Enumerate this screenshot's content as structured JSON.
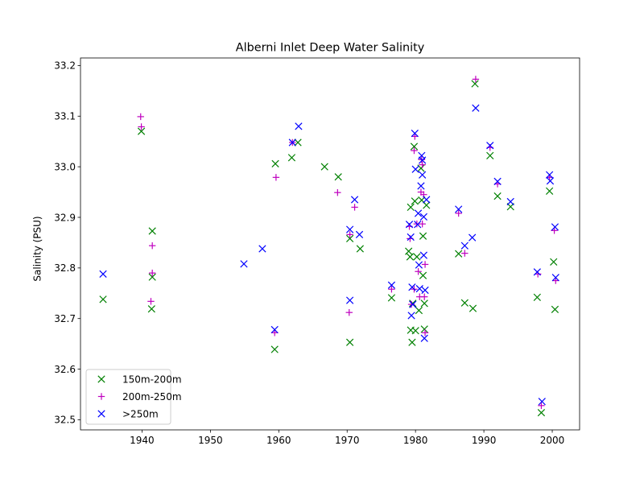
{
  "chart_data": {
    "type": "scatter",
    "title": "Alberni Inlet Deep Water Salinity",
    "xlabel": "",
    "ylabel": "Salinity (PSU)",
    "xlim": [
      1931,
      2004
    ],
    "ylim": [
      32.48,
      33.215
    ],
    "xticks": [
      1940,
      1950,
      1960,
      1970,
      1980,
      1990,
      2000
    ],
    "yticks": [
      32.5,
      32.6,
      32.7,
      32.8,
      32.9,
      33.0,
      33.1,
      33.2
    ],
    "ytick_labels": [
      "32.5",
      "32.6",
      "32.7",
      "32.8",
      "32.9",
      "33.0",
      "33.1",
      "33.2"
    ],
    "grid": false,
    "legend_position": "lower-left",
    "series": [
      {
        "name": "150m-200m",
        "marker": "x",
        "color": "#008000",
        "points": [
          [
            1934.3,
            32.738
          ],
          [
            1939.9,
            33.07
          ],
          [
            1941.5,
            32.873
          ],
          [
            1941.5,
            32.782
          ],
          [
            1941.4,
            32.719
          ],
          [
            1959.5,
            33.006
          ],
          [
            1959.4,
            32.639
          ],
          [
            1961.9,
            33.018
          ],
          [
            1962.8,
            33.048
          ],
          [
            1966.7,
            33.0
          ],
          [
            1968.7,
            32.98
          ],
          [
            1970.4,
            32.858
          ],
          [
            1970.4,
            32.653
          ],
          [
            1971.9,
            32.838
          ],
          [
            1976.5,
            32.741
          ],
          [
            1979.0,
            32.833
          ],
          [
            1979.2,
            32.822
          ],
          [
            1979.3,
            32.92
          ],
          [
            1979.3,
            32.677
          ],
          [
            1979.5,
            32.653
          ],
          [
            1979.6,
            32.73
          ],
          [
            1979.8,
            33.04
          ],
          [
            1979.9,
            32.932
          ],
          [
            1980.0,
            32.676
          ],
          [
            1980.2,
            32.822
          ],
          [
            1980.5,
            32.716
          ],
          [
            1980.8,
            32.997
          ],
          [
            1980.9,
            32.934
          ],
          [
            1981.1,
            32.785
          ],
          [
            1981.1,
            32.863
          ],
          [
            1981.3,
            32.73
          ],
          [
            1981.3,
            32.679
          ],
          [
            1981.6,
            32.924
          ],
          [
            1986.3,
            32.828
          ],
          [
            1987.2,
            32.731
          ],
          [
            1988.4,
            32.72
          ],
          [
            1988.7,
            33.164
          ],
          [
            1990.9,
            33.022
          ],
          [
            1992.0,
            32.942
          ],
          [
            1993.9,
            32.921
          ],
          [
            1997.8,
            32.742
          ],
          [
            1998.4,
            32.514
          ],
          [
            1999.6,
            32.952
          ],
          [
            2000.2,
            32.812
          ],
          [
            2000.4,
            32.718
          ]
        ]
      },
      {
        "name": "200m-250m",
        "marker": "+",
        "color": "#bf00bf",
        "points": [
          [
            1939.8,
            33.099
          ],
          [
            1939.9,
            33.079
          ],
          [
            1941.5,
            32.844
          ],
          [
            1941.5,
            32.79
          ],
          [
            1941.3,
            32.734
          ],
          [
            1959.6,
            32.979
          ],
          [
            1959.4,
            32.672
          ],
          [
            1962.0,
            33.048
          ],
          [
            1968.6,
            32.949
          ],
          [
            1970.4,
            32.866
          ],
          [
            1970.3,
            32.712
          ],
          [
            1971.1,
            32.92
          ],
          [
            1976.5,
            32.758
          ],
          [
            1979.1,
            32.882
          ],
          [
            1979.2,
            32.858
          ],
          [
            1979.4,
            32.728
          ],
          [
            1979.8,
            32.758
          ],
          [
            1979.8,
            33.032
          ],
          [
            1979.9,
            33.06
          ],
          [
            1980.2,
            32.887
          ],
          [
            1980.4,
            32.793
          ],
          [
            1980.6,
            32.743
          ],
          [
            1980.8,
            32.95
          ],
          [
            1980.9,
            33.014
          ],
          [
            1981.0,
            33.004
          ],
          [
            1981.0,
            32.887
          ],
          [
            1981.2,
            32.945
          ],
          [
            1981.4,
            32.807
          ],
          [
            1981.3,
            32.743
          ],
          [
            1981.4,
            32.672
          ],
          [
            1986.3,
            32.908
          ],
          [
            1987.2,
            32.829
          ],
          [
            1988.8,
            33.173
          ],
          [
            1990.9,
            33.038
          ],
          [
            1992.0,
            32.966
          ],
          [
            1997.9,
            32.788
          ],
          [
            1998.4,
            32.528
          ],
          [
            1999.6,
            32.979
          ],
          [
            2000.3,
            32.874
          ],
          [
            2000.5,
            32.775
          ]
        ]
      },
      {
        "name": ">250m",
        "marker": "x",
        "color": "#0000ff",
        "points": [
          [
            1934.3,
            32.788
          ],
          [
            1954.9,
            32.808
          ],
          [
            1957.6,
            32.838
          ],
          [
            1959.4,
            32.678
          ],
          [
            1962.0,
            33.048
          ],
          [
            1962.9,
            33.08
          ],
          [
            1970.4,
            32.876
          ],
          [
            1970.4,
            32.736
          ],
          [
            1971.1,
            32.935
          ],
          [
            1971.8,
            32.866
          ],
          [
            1976.5,
            32.766
          ],
          [
            1979.1,
            32.886
          ],
          [
            1979.3,
            32.861
          ],
          [
            1979.4,
            32.706
          ],
          [
            1979.5,
            32.762
          ],
          [
            1979.6,
            32.728
          ],
          [
            1979.9,
            33.066
          ],
          [
            1980.0,
            32.995
          ],
          [
            1980.3,
            32.886
          ],
          [
            1980.4,
            32.908
          ],
          [
            1980.5,
            32.806
          ],
          [
            1980.6,
            32.759
          ],
          [
            1980.8,
            32.962
          ],
          [
            1980.9,
            33.022
          ],
          [
            1981.0,
            33.013
          ],
          [
            1981.0,
            32.984
          ],
          [
            1981.2,
            32.901
          ],
          [
            1981.2,
            32.825
          ],
          [
            1981.4,
            32.756
          ],
          [
            1981.3,
            32.661
          ],
          [
            1981.6,
            32.935
          ],
          [
            1986.3,
            32.916
          ],
          [
            1987.2,
            32.844
          ],
          [
            1988.3,
            32.86
          ],
          [
            1988.8,
            33.116
          ],
          [
            1990.9,
            33.042
          ],
          [
            1992.0,
            32.971
          ],
          [
            1993.9,
            32.931
          ],
          [
            1997.8,
            32.792
          ],
          [
            1998.5,
            32.536
          ],
          [
            1999.6,
            32.984
          ],
          [
            1999.7,
            32.972
          ],
          [
            2000.4,
            32.881
          ],
          [
            2000.5,
            32.781
          ]
        ]
      }
    ]
  }
}
